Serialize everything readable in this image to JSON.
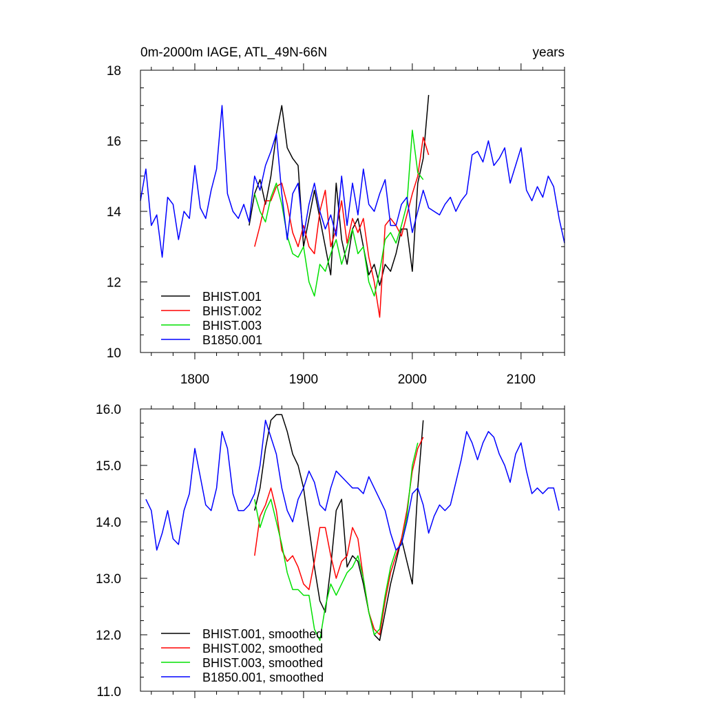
{
  "chart_data": [
    {
      "type": "line",
      "title": "0m-2000m IAGE, ATL_49N-66N",
      "units": "years",
      "xlim": [
        1750,
        2140
      ],
      "ylim": [
        10,
        18
      ],
      "x_ticks": [
        1800,
        1900,
        2000,
        2100
      ],
      "x_tick_labels": [
        "1800",
        "1900",
        "2000",
        "2100"
      ],
      "y_ticks": [
        10,
        12,
        14,
        16,
        18
      ],
      "y_tick_labels": [
        "10",
        "12",
        "14",
        "16",
        "18"
      ],
      "legend_position": "bottom-left",
      "series": [
        {
          "name": "BHIST.001",
          "color": "#000000",
          "x": [
            1850,
            1855,
            1860,
            1865,
            1870,
            1875,
            1880,
            1885,
            1890,
            1895,
            1900,
            1905,
            1910,
            1915,
            1920,
            1925,
            1930,
            1935,
            1940,
            1945,
            1950,
            1955,
            1960,
            1965,
            1970,
            1975,
            1980,
            1985,
            1990,
            1995,
            2000,
            2005,
            2010,
            2015
          ],
          "values": [
            13.6,
            14.5,
            14.9,
            14.2,
            15.0,
            16.2,
            17.0,
            15.8,
            15.5,
            15.3,
            13.0,
            13.8,
            14.6,
            13.8,
            13.0,
            12.2,
            14.8,
            13.2,
            12.5,
            13.5,
            13.8,
            13.0,
            12.2,
            12.5,
            11.9,
            12.5,
            12.3,
            12.8,
            13.5,
            13.5,
            12.3,
            14.8,
            15.5,
            17.3
          ]
        },
        {
          "name": "BHIST.002",
          "color": "#ff0000",
          "x": [
            1855,
            1860,
            1865,
            1870,
            1875,
            1880,
            1885,
            1890,
            1895,
            1900,
            1905,
            1910,
            1915,
            1920,
            1925,
            1930,
            1935,
            1940,
            1945,
            1950,
            1955,
            1960,
            1965,
            1970,
            1975,
            1980,
            1985,
            1990,
            1995,
            2000,
            2005,
            2010,
            2015
          ],
          "values": [
            13.0,
            13.6,
            14.3,
            14.3,
            14.7,
            14.8,
            14.2,
            13.4,
            13.0,
            13.6,
            13.0,
            12.8,
            14.0,
            14.6,
            13.0,
            13.5,
            14.3,
            13.1,
            13.8,
            13.4,
            13.8,
            12.7,
            12.0,
            11.0,
            13.6,
            13.8,
            13.6,
            13.3,
            13.9,
            14.5,
            15.0,
            16.1,
            15.6
          ]
        },
        {
          "name": "BHIST.003",
          "color": "#00e000",
          "x": [
            1855,
            1860,
            1865,
            1870,
            1875,
            1880,
            1885,
            1890,
            1895,
            1900,
            1905,
            1910,
            1915,
            1920,
            1925,
            1930,
            1935,
            1940,
            1945,
            1950,
            1955,
            1960,
            1965,
            1970,
            1975,
            1980,
            1985,
            1990,
            1995,
            2000,
            2005,
            2010
          ],
          "values": [
            14.5,
            14.0,
            13.7,
            14.4,
            14.8,
            14.2,
            13.3,
            12.8,
            12.7,
            13.0,
            12.0,
            11.6,
            12.5,
            12.3,
            12.8,
            13.2,
            12.5,
            13.0,
            13.5,
            12.8,
            13.0,
            12.0,
            11.6,
            12.3,
            13.2,
            13.4,
            13.1,
            13.6,
            14.2,
            16.3,
            15.1,
            14.9
          ]
        },
        {
          "name": "B1850.001",
          "color": "#0000ff",
          "x": [
            1750,
            1755,
            1760,
            1765,
            1770,
            1775,
            1780,
            1785,
            1790,
            1795,
            1800,
            1805,
            1810,
            1815,
            1820,
            1825,
            1830,
            1835,
            1840,
            1845,
            1850,
            1855,
            1860,
            1865,
            1870,
            1875,
            1880,
            1885,
            1890,
            1895,
            1900,
            1905,
            1910,
            1915,
            1920,
            1925,
            1930,
            1935,
            1940,
            1945,
            1950,
            1955,
            1960,
            1965,
            1970,
            1975,
            1980,
            1985,
            1990,
            1995,
            2000,
            2005,
            2010,
            2015,
            2020,
            2025,
            2030,
            2035,
            2040,
            2045,
            2050,
            2055,
            2060,
            2065,
            2070,
            2075,
            2080,
            2085,
            2090,
            2095,
            2100,
            2105,
            2110,
            2115,
            2120,
            2125,
            2130,
            2135,
            2140
          ],
          "values": [
            14.3,
            15.2,
            13.6,
            13.9,
            12.7,
            14.4,
            14.2,
            13.2,
            14.0,
            13.8,
            15.3,
            14.1,
            13.8,
            14.6,
            15.2,
            17.0,
            14.5,
            14.0,
            13.8,
            14.2,
            13.7,
            15.0,
            14.6,
            15.3,
            15.7,
            16.2,
            14.5,
            13.2,
            14.5,
            14.8,
            13.3,
            14.2,
            14.8,
            14.0,
            13.5,
            13.9,
            13.3,
            15.0,
            13.6,
            14.8,
            13.9,
            15.2,
            14.2,
            14.0,
            14.5,
            14.9,
            13.6,
            13.6,
            14.2,
            14.4,
            13.4,
            14.0,
            14.6,
            14.1,
            14.0,
            13.9,
            14.2,
            14.4,
            14.0,
            14.3,
            14.5,
            15.6,
            15.7,
            15.4,
            16.0,
            15.3,
            15.5,
            15.8,
            14.8,
            15.3,
            15.8,
            14.6,
            14.3,
            14.7,
            14.4,
            15.0,
            14.7,
            13.8,
            13.1
          ]
        }
      ]
    },
    {
      "type": "line",
      "title": "",
      "xlim": [
        1750,
        2140
      ],
      "ylim": [
        11.0,
        16.0
      ],
      "x_ticks": [
        1800,
        1900,
        2000,
        2100
      ],
      "y_ticks": [
        11.0,
        12.0,
        13.0,
        14.0,
        15.0,
        16.0
      ],
      "y_tick_labels": [
        "11.0",
        "12.0",
        "13.0",
        "14.0",
        "15.0",
        "16.0"
      ],
      "legend_position": "bottom-left",
      "series": [
        {
          "name": "BHIST.001, smoothed",
          "color": "#000000",
          "x": [
            1855,
            1860,
            1865,
            1870,
            1875,
            1880,
            1885,
            1890,
            1895,
            1900,
            1905,
            1910,
            1915,
            1920,
            1925,
            1930,
            1935,
            1940,
            1945,
            1950,
            1955,
            1960,
            1965,
            1970,
            1975,
            1980,
            1985,
            1990,
            1995,
            2000,
            2005,
            2010
          ],
          "values": [
            14.2,
            14.6,
            15.3,
            15.8,
            15.9,
            15.9,
            15.6,
            15.2,
            15.0,
            14.6,
            13.9,
            13.2,
            12.6,
            12.4,
            13.2,
            14.2,
            14.4,
            13.2,
            13.4,
            13.3,
            12.9,
            12.4,
            12.0,
            11.9,
            12.4,
            12.9,
            13.3,
            13.7,
            13.3,
            12.9,
            14.6,
            15.8
          ]
        },
        {
          "name": "BHIST.002, smoothed",
          "color": "#ff0000",
          "x": [
            1855,
            1860,
            1865,
            1870,
            1875,
            1880,
            1885,
            1890,
            1895,
            1900,
            1905,
            1910,
            1915,
            1920,
            1925,
            1930,
            1935,
            1940,
            1945,
            1950,
            1955,
            1960,
            1965,
            1970,
            1975,
            1980,
            1985,
            1990,
            1995,
            2000,
            2005,
            2010
          ],
          "values": [
            13.4,
            14.1,
            14.3,
            14.6,
            14.2,
            13.5,
            13.3,
            13.4,
            13.2,
            12.9,
            12.8,
            13.3,
            13.9,
            13.9,
            13.4,
            13.0,
            13.3,
            13.4,
            13.9,
            13.7,
            13.0,
            12.4,
            12.1,
            12.0,
            12.6,
            13.1,
            13.4,
            13.7,
            14.2,
            14.9,
            15.3,
            15.5
          ]
        },
        {
          "name": "BHIST.003, smoothed",
          "color": "#00e000",
          "x": [
            1855,
            1860,
            1865,
            1870,
            1875,
            1880,
            1885,
            1890,
            1895,
            1900,
            1905,
            1910,
            1915,
            1920,
            1925,
            1930,
            1935,
            1940,
            1945,
            1950,
            1955,
            1960,
            1965,
            1970,
            1975,
            1980,
            1985,
            1990,
            1995,
            2000,
            2005
          ],
          "values": [
            14.4,
            13.9,
            14.2,
            14.4,
            14.0,
            13.6,
            13.1,
            12.8,
            12.8,
            12.7,
            12.7,
            12.1,
            11.9,
            12.5,
            12.9,
            12.7,
            12.9,
            13.1,
            13.2,
            13.4,
            13.0,
            12.4,
            12.0,
            12.1,
            12.7,
            13.2,
            13.5,
            13.6,
            14.1,
            15.0,
            15.4
          ]
        },
        {
          "name": "B1850.001, smoothed",
          "color": "#0000ff",
          "x": [
            1755,
            1760,
            1765,
            1770,
            1775,
            1780,
            1785,
            1790,
            1795,
            1800,
            1805,
            1810,
            1815,
            1820,
            1825,
            1830,
            1835,
            1840,
            1845,
            1850,
            1855,
            1860,
            1865,
            1870,
            1875,
            1880,
            1885,
            1890,
            1895,
            1900,
            1905,
            1910,
            1915,
            1920,
            1925,
            1930,
            1935,
            1940,
            1945,
            1950,
            1955,
            1960,
            1965,
            1970,
            1975,
            1980,
            1985,
            1990,
            1995,
            2000,
            2005,
            2010,
            2015,
            2020,
            2025,
            2030,
            2035,
            2040,
            2045,
            2050,
            2055,
            2060,
            2065,
            2070,
            2075,
            2080,
            2085,
            2090,
            2095,
            2100,
            2105,
            2110,
            2115,
            2120,
            2125,
            2130,
            2135
          ],
          "values": [
            14.4,
            14.2,
            13.5,
            13.8,
            14.2,
            13.7,
            13.6,
            14.2,
            14.5,
            15.3,
            14.8,
            14.3,
            14.2,
            14.6,
            15.6,
            15.3,
            14.5,
            14.2,
            14.2,
            14.3,
            14.5,
            15.0,
            15.8,
            15.5,
            15.2,
            14.6,
            14.2,
            14.0,
            14.4,
            14.6,
            14.9,
            14.7,
            14.3,
            14.2,
            14.6,
            14.9,
            14.8,
            14.7,
            14.6,
            14.6,
            14.5,
            14.8,
            14.6,
            14.4,
            14.2,
            13.8,
            13.5,
            13.6,
            14.0,
            14.5,
            14.6,
            14.3,
            13.8,
            14.1,
            14.3,
            14.2,
            14.3,
            14.7,
            15.1,
            15.6,
            15.4,
            15.1,
            15.4,
            15.6,
            15.5,
            15.2,
            15.0,
            14.7,
            15.2,
            15.4,
            14.9,
            14.5,
            14.6,
            14.5,
            14.6,
            14.6,
            14.2
          ]
        }
      ]
    }
  ]
}
